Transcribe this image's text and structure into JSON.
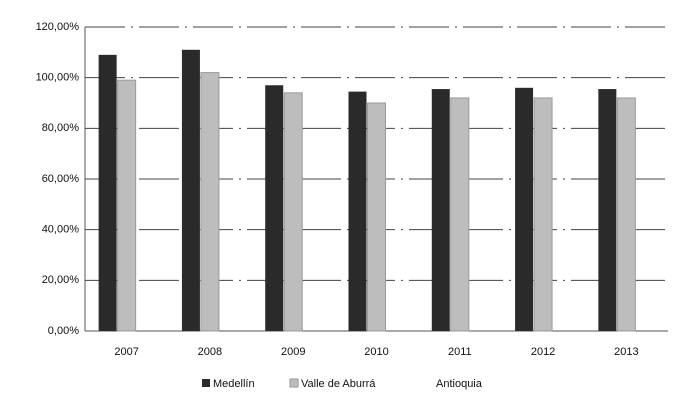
{
  "chart_data": {
    "type": "bar",
    "categories": [
      "2007",
      "2008",
      "2009",
      "2010",
      "2011",
      "2012",
      "2013"
    ],
    "series": [
      {
        "name": "Medellín",
        "color": "#2a2a2a",
        "values": [
          109,
          111,
          97,
          94.5,
          95.5,
          96,
          95.5
        ]
      },
      {
        "name": "Valle de Aburrá",
        "color": "#bdbdbd",
        "values": [
          99,
          102,
          94,
          90,
          92,
          92,
          92
        ]
      },
      {
        "name": "Antioquia",
        "color": "#ffffff",
        "values": [
          null,
          null,
          null,
          null,
          null,
          null,
          null
        ]
      }
    ],
    "ylim": [
      0,
      120
    ],
    "yticks": [
      {
        "value": 0,
        "label": "0,00%"
      },
      {
        "value": 20,
        "label": "20,00%"
      },
      {
        "value": 40,
        "label": "40,00%"
      },
      {
        "value": 60,
        "label": "60,00%"
      },
      {
        "value": 80,
        "label": "80,00%"
      },
      {
        "value": 100,
        "label": "100,00%"
      },
      {
        "value": 120,
        "label": "120,00%"
      }
    ],
    "grid": true,
    "legend": "bottom"
  }
}
